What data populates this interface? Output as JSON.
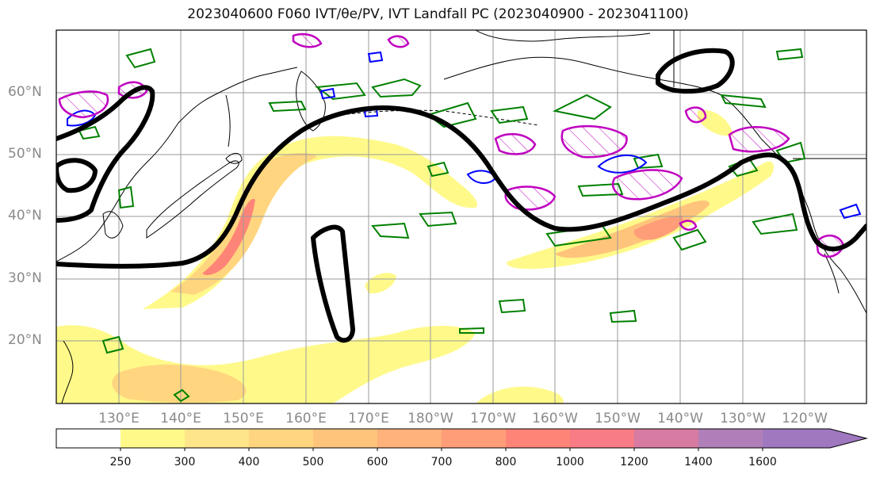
{
  "title": "2023040600 F060 IVT/θe/PV, IVT Landfall PC (2023040900 - 2023041100)",
  "lat_labels": [
    "60°N",
    "50°N",
    "40°N",
    "30°N",
    "20°N"
  ],
  "lon_labels": [
    "130°E",
    "140°E",
    "150°E",
    "160°E",
    "170°E",
    "180°W",
    "170°W",
    "160°W",
    "150°W",
    "140°W",
    "130°W",
    "120°W"
  ],
  "colorbar": {
    "levels": [
      "250",
      "300",
      "400",
      "500",
      "600",
      "700",
      "800",
      "1000",
      "1200",
      "1400",
      "1600"
    ],
    "colors": [
      "#ffffff",
      "#fff98a",
      "#ffe58a",
      "#ffd67f",
      "#ffc47c",
      "#ffb27a",
      "#ff9d78",
      "#ff8478",
      "#f77c86",
      "#d77ba2",
      "#b07fb9",
      "#9f78c0"
    ]
  },
  "colors": {
    "ivt_pc_contour": "#000000",
    "theta_e_contour": "#008000",
    "pv_contour": "#0000ff",
    "hatched_contour": "#c000c0",
    "coastline": "#000000",
    "gridline": "#9a9a9a"
  }
}
